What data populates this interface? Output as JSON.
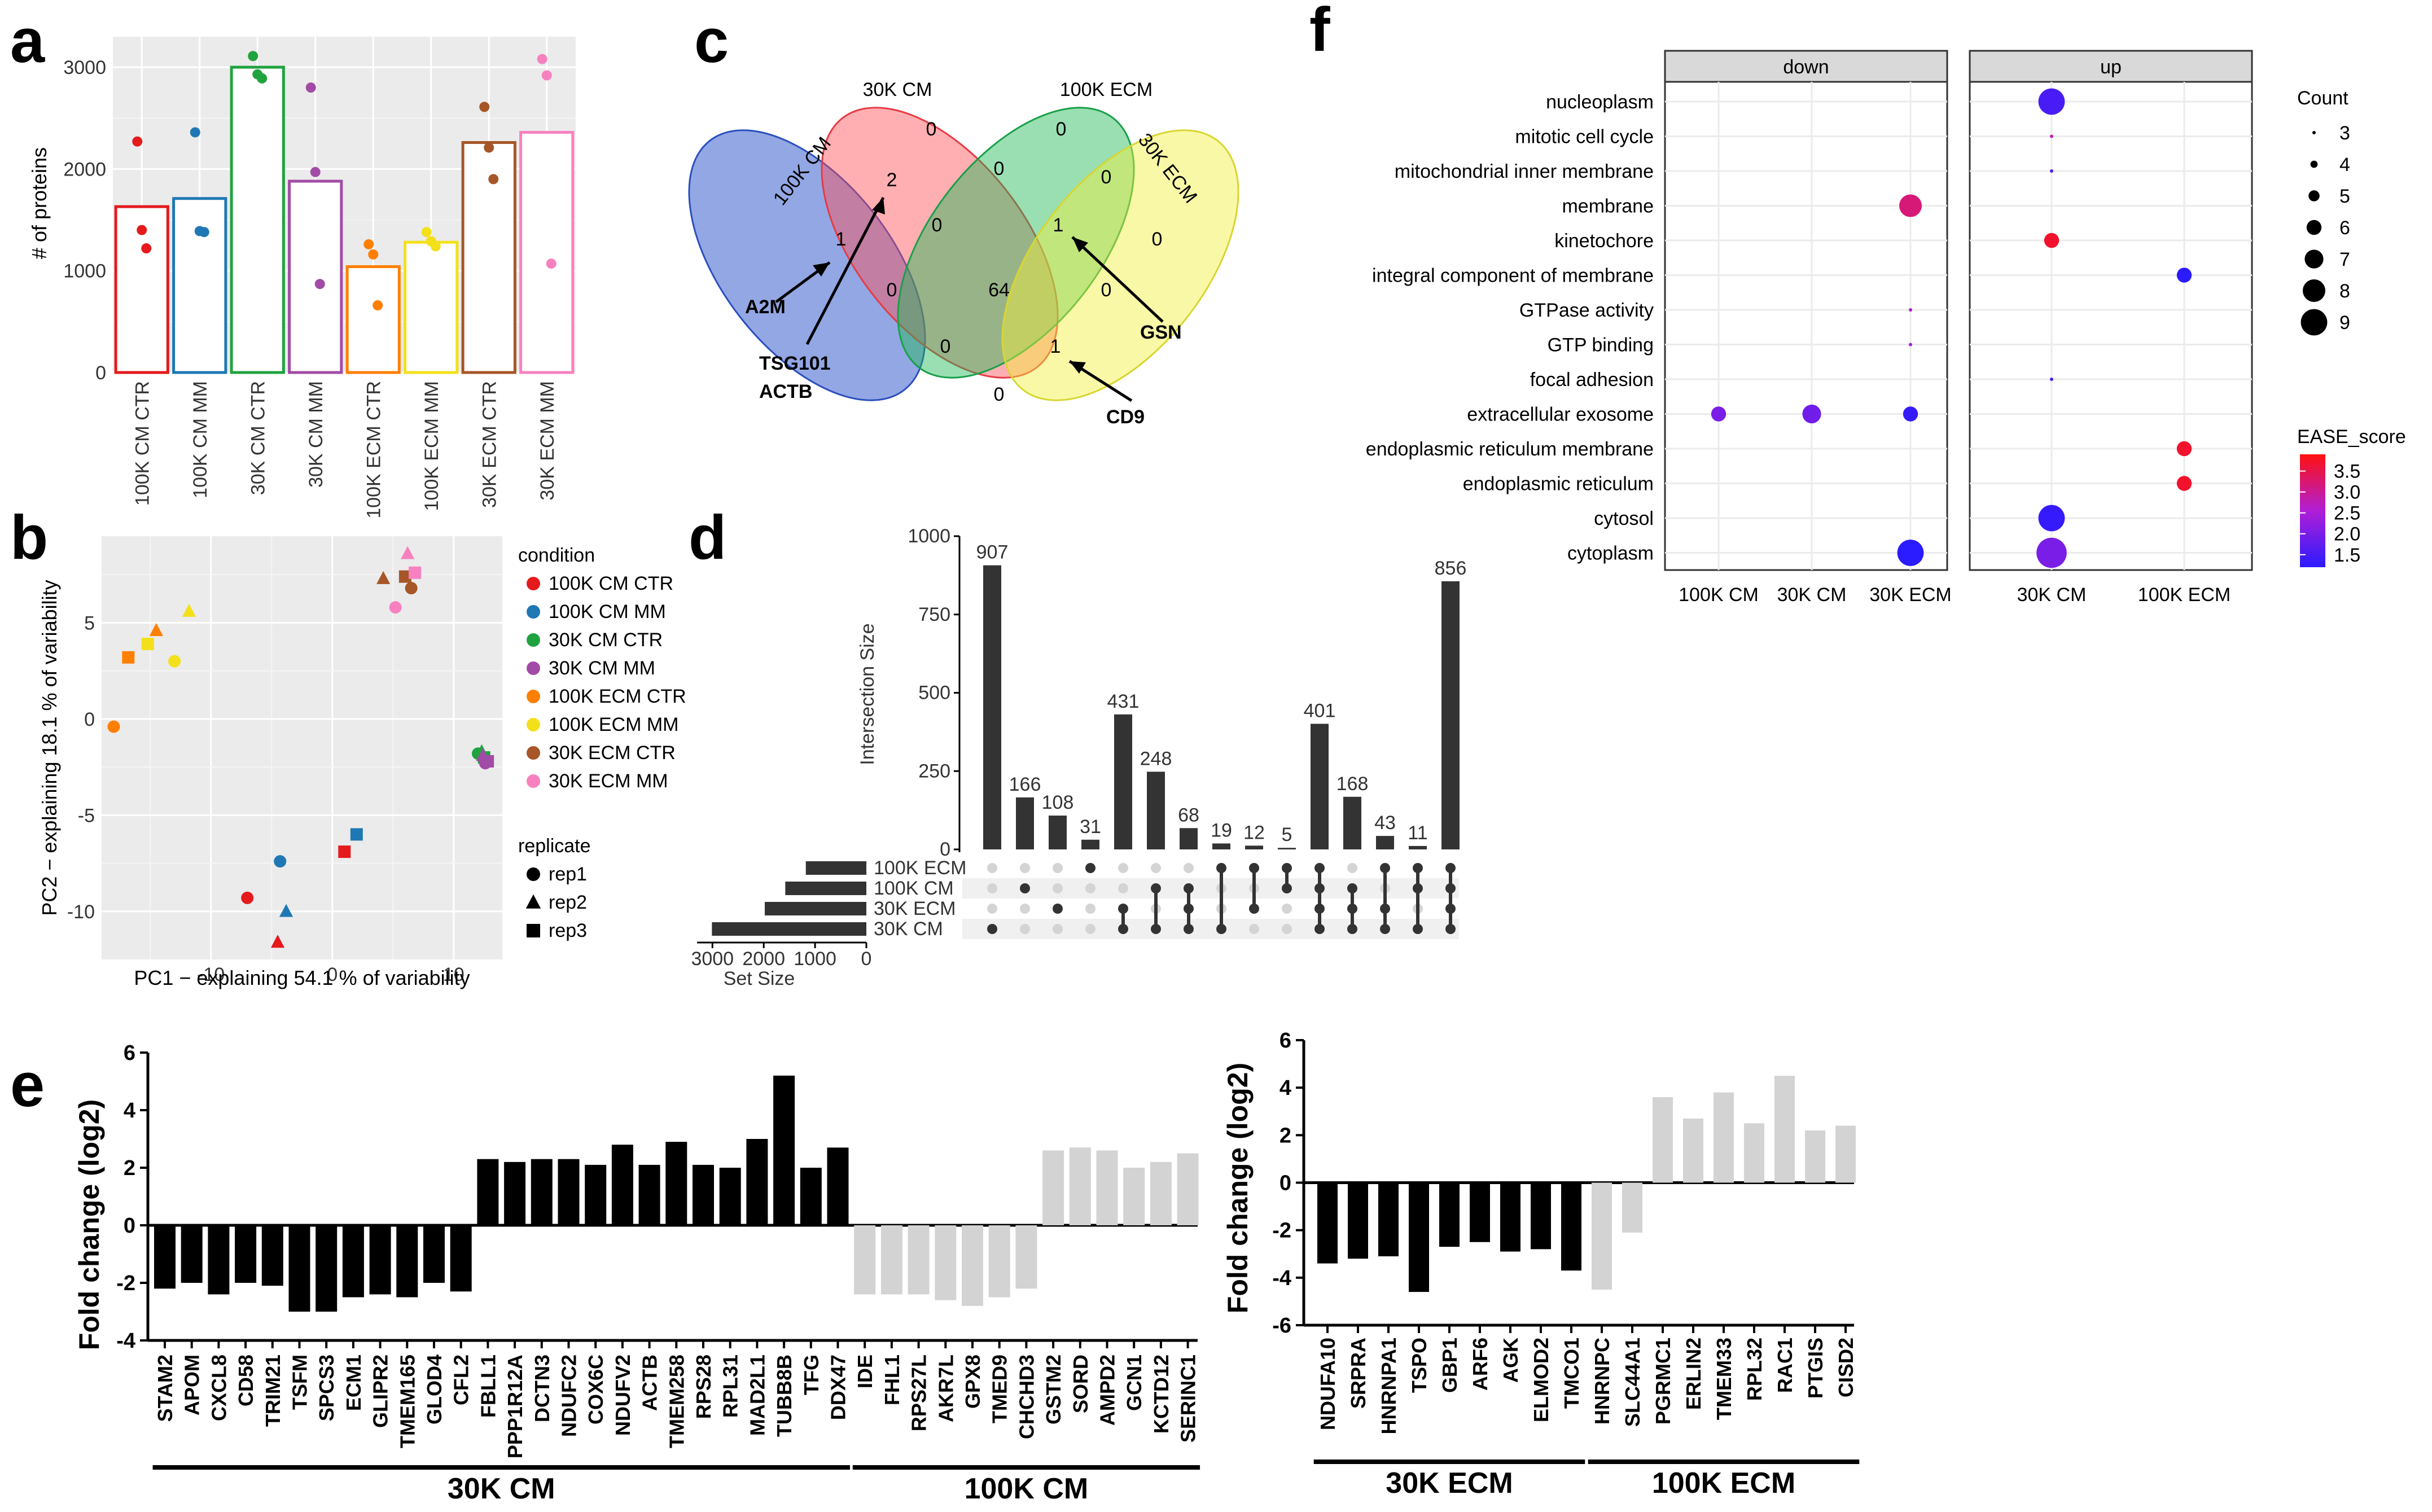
{
  "panels": {
    "a": "a",
    "b": "b",
    "c": "c",
    "d": "d",
    "e": "e",
    "f": "f"
  },
  "chart_data": [
    {
      "id": "a",
      "type": "bar",
      "ylabel": "# of proteins",
      "ylim": [
        0,
        3300
      ],
      "yticks": [
        0,
        1000,
        2000,
        3000
      ],
      "categories": [
        "100K CM CTR",
        "100K CM MM",
        "30K CM CTR",
        "30K CM MM",
        "100K ECM CTR",
        "100K ECM MM",
        "30K ECM CTR",
        "30K ECM MM"
      ],
      "values": [
        1630,
        1710,
        3000,
        1880,
        1040,
        1280,
        2260,
        2360
      ],
      "points": [
        [
          2270,
          1400,
          1220
        ],
        [
          2360,
          1390,
          1380
        ],
        [
          3110,
          2930,
          2890
        ],
        [
          2800,
          1970,
          870
        ],
        [
          1260,
          1160,
          660
        ],
        [
          1380,
          1290,
          1240
        ],
        [
          2610,
          2210,
          1900
        ],
        [
          3080,
          2920,
          1070
        ]
      ],
      "colors": [
        "#e41a1c",
        "#1f78b4",
        "#1fa33f",
        "#a24ba6",
        "#ff7f00",
        "#f3e01b",
        "#a65628",
        "#f781bf"
      ]
    },
    {
      "id": "b",
      "type": "scatter",
      "xlabel": "PC1 − explaining 54.1 % of variability",
      "ylabel": "PC2 − explaining 18.1 % of variability",
      "xlim": [
        -19,
        14
      ],
      "ylim": [
        -12.5,
        9.5
      ],
      "xticks": [
        -10,
        0,
        10
      ],
      "yticks": [
        -10,
        -5,
        0,
        5
      ],
      "legend_condition_title": "condition",
      "legend_condition": [
        "100K CM CTR",
        "100K CM MM",
        "30K CM CTR",
        "30K CM MM",
        "100K ECM CTR",
        "100K ECM MM",
        "30K ECM CTR",
        "30K ECM MM"
      ],
      "legend_replicate_title": "replicate",
      "legend_replicate": [
        "rep1",
        "rep2",
        "rep3"
      ],
      "points": [
        {
          "c": 0,
          "r": 0,
          "x": -7,
          "y": -9.3
        },
        {
          "c": 0,
          "r": 1,
          "x": -4.5,
          "y": -11.6
        },
        {
          "c": 0,
          "r": 2,
          "x": 1,
          "y": -6.9
        },
        {
          "c": 1,
          "r": 0,
          "x": -4.3,
          "y": -7.4
        },
        {
          "c": 1,
          "r": 1,
          "x": -3.8,
          "y": -10
        },
        {
          "c": 1,
          "r": 2,
          "x": 2,
          "y": -6
        },
        {
          "c": 2,
          "r": 0,
          "x": 12,
          "y": -1.8
        },
        {
          "c": 2,
          "r": 1,
          "x": 12.3,
          "y": -1.7
        },
        {
          "c": 2,
          "r": 2,
          "x": 12.5,
          "y": -2
        },
        {
          "c": 3,
          "r": 0,
          "x": 12.6,
          "y": -2.3
        },
        {
          "c": 3,
          "r": 1,
          "x": 12.4,
          "y": -1.9
        },
        {
          "c": 3,
          "r": 2,
          "x": 12.8,
          "y": -2.2
        },
        {
          "c": 4,
          "r": 0,
          "x": -18,
          "y": -0.4
        },
        {
          "c": 4,
          "r": 1,
          "x": -14.5,
          "y": 4.6
        },
        {
          "c": 4,
          "r": 2,
          "x": -16.8,
          "y": 3.2
        },
        {
          "c": 5,
          "r": 0,
          "x": -13,
          "y": 3
        },
        {
          "c": 5,
          "r": 1,
          "x": -11.8,
          "y": 5.6
        },
        {
          "c": 5,
          "r": 2,
          "x": -15.2,
          "y": 3.9
        },
        {
          "c": 6,
          "r": 0,
          "x": 6.5,
          "y": 6.8
        },
        {
          "c": 6,
          "r": 1,
          "x": 4.2,
          "y": 7.3
        },
        {
          "c": 6,
          "r": 2,
          "x": 6,
          "y": 7.4
        },
        {
          "c": 7,
          "r": 0,
          "x": 5.2,
          "y": 5.8
        },
        {
          "c": 7,
          "r": 1,
          "x": 6.2,
          "y": 8.6
        },
        {
          "c": 7,
          "r": 2,
          "x": 6.8,
          "y": 7.6
        }
      ]
    },
    {
      "id": "d",
      "type": "bar",
      "ylabel": "Intersection Size",
      "ylim": [
        0,
        1000
      ],
      "yticks": [
        0,
        250,
        500,
        750,
        1000
      ],
      "values": [
        907,
        166,
        108,
        31,
        431,
        248,
        68,
        19,
        12,
        5,
        401,
        168,
        43,
        11,
        856
      ],
      "sets": [
        "100K ECM",
        "100K CM",
        "30K ECM",
        "30K CM"
      ],
      "set_sizes": [
        1180,
        1580,
        1980,
        3010
      ],
      "set_size_label": "Set Size",
      "set_size_ticks": [
        3000,
        2000,
        1000,
        0
      ],
      "matrix": [
        [
          3
        ],
        [
          1
        ],
        [
          2
        ],
        [
          0
        ],
        [
          2,
          3
        ],
        [
          1,
          3
        ],
        [
          1,
          2,
          3
        ],
        [
          0,
          3
        ],
        [
          0,
          2
        ],
        [
          0,
          1
        ],
        [
          0,
          1,
          2,
          3
        ],
        [
          1,
          2,
          3
        ],
        [
          0,
          2,
          3
        ],
        [
          0,
          1,
          3
        ],
        [
          0,
          1,
          2,
          3
        ]
      ]
    },
    {
      "id": "e1",
      "type": "bar",
      "ylabel": "Fold change (log2)",
      "ylim": [
        -4,
        6
      ],
      "yticks": [
        -4,
        -2,
        0,
        2,
        4,
        6
      ],
      "categories": [
        "STAM2",
        "APOM",
        "CXCL8",
        "CD58",
        "TRIM21",
        "TSFM",
        "SPCS3",
        "ECM1",
        "GLIPR2",
        "TMEM165",
        "GLOD4",
        "CFL2",
        "FBLL1",
        "PPP1R12A",
        "DCTN3",
        "NDUFC2",
        "COX6C",
        "NDUFV2",
        "ACTB",
        "TMEM258",
        "RPS28",
        "RPL31",
        "MAD2L1",
        "TUBB8B",
        "TFG",
        "DDX47",
        "IDE",
        "FHL1",
        "RPS27L",
        "AKR7L",
        "GPX8",
        "TMED9",
        "CHCHD3",
        "GSTM2",
        "SORD",
        "AMPD2",
        "GCN1",
        "KCTD12",
        "SERINC1"
      ],
      "values": [
        -2.2,
        -2.0,
        -2.4,
        -2.0,
        -2.1,
        -3.0,
        -3.0,
        -2.5,
        -2.4,
        -2.5,
        -2.0,
        -2.3,
        2.3,
        2.2,
        2.3,
        2.3,
        2.1,
        2.8,
        2.1,
        2.9,
        2.1,
        2.0,
        3.0,
        5.2,
        2.0,
        2.7,
        -2.4,
        -2.4,
        -2.4,
        -2.6,
        -2.8,
        -2.5,
        -2.2,
        2.6,
        2.7,
        2.6,
        2.0,
        2.2,
        2.5
      ],
      "groups": [
        {
          "label": "30K CM",
          "start": 0,
          "end": 25,
          "color": "#000000"
        },
        {
          "label": "100K CM",
          "start": 26,
          "end": 38,
          "color": "#d3d3d3"
        }
      ]
    },
    {
      "id": "e2",
      "type": "bar",
      "ylabel": "Fold change (log2)",
      "ylim": [
        -6,
        6
      ],
      "yticks": [
        -6,
        -4,
        -2,
        0,
        2,
        4,
        6
      ],
      "categories": [
        "NDUFA10",
        "SRPRA",
        "HNRNPA1",
        "TSPO",
        "GBP1",
        "ARF6",
        "AGK",
        "ELMOD2",
        "TMCO1",
        "HNRNPC",
        "SLC44A1",
        "PGRMC1",
        "ERLIN2",
        "TMEM33",
        "RPL32",
        "RAC1",
        "PTGIS",
        "CISD2"
      ],
      "values": [
        -3.4,
        -3.2,
        -3.1,
        -4.6,
        -2.7,
        -2.5,
        -2.9,
        -2.8,
        -3.7,
        -4.5,
        -2.1,
        3.6,
        2.7,
        3.8,
        2.5,
        4.5,
        2.2,
        2.4
      ],
      "groups": [
        {
          "label": "30K ECM",
          "start": 0,
          "end": 8,
          "color": "#000000"
        },
        {
          "label": "100K ECM",
          "start": 9,
          "end": 17,
          "color": "#d3d3d3"
        }
      ]
    },
    {
      "id": "f",
      "type": "scatter",
      "facets": [
        "down",
        "up"
      ],
      "terms": [
        "nucleoplasm",
        "mitotic cell cycle",
        "mitochondrial inner membrane",
        "membrane",
        "kinetochore",
        "integral component of membrane",
        "GTPase activity",
        "GTP binding",
        "focal adhesion",
        "extracellular exosome",
        "endoplasmic reticulum membrane",
        "endoplasmic reticulum",
        "cytosol",
        "cytoplasm"
      ],
      "down_x": [
        "100K CM",
        "30K CM",
        "30K ECM"
      ],
      "up_x": [
        "30K CM",
        "100K ECM"
      ],
      "points": [
        {
          "f": 0,
          "x": 2,
          "t": 3,
          "count": 8,
          "ease": 3.2
        },
        {
          "f": 0,
          "x": 2,
          "t": 6,
          "count": 3,
          "ease": 2.6
        },
        {
          "f": 0,
          "x": 2,
          "t": 7,
          "count": 3,
          "ease": 2.4
        },
        {
          "f": 0,
          "x": 0,
          "t": 9,
          "count": 6,
          "ease": 2.0
        },
        {
          "f": 0,
          "x": 1,
          "t": 9,
          "count": 7,
          "ease": 1.9
        },
        {
          "f": 0,
          "x": 2,
          "t": 9,
          "count": 6,
          "ease": 1.3
        },
        {
          "f": 0,
          "x": 2,
          "t": 13,
          "count": 9,
          "ease": 1.2
        },
        {
          "f": 1,
          "x": 0,
          "t": 0,
          "count": 9,
          "ease": 1.5
        },
        {
          "f": 1,
          "x": 0,
          "t": 1,
          "count": 3,
          "ease": 2.8
        },
        {
          "f": 1,
          "x": 0,
          "t": 2,
          "count": 3,
          "ease": 1.6
        },
        {
          "f": 1,
          "x": 0,
          "t": 4,
          "count": 6,
          "ease": 3.7
        },
        {
          "f": 1,
          "x": 1,
          "t": 5,
          "count": 6,
          "ease": 1.2
        },
        {
          "f": 1,
          "x": 0,
          "t": 8,
          "count": 3,
          "ease": 1.5
        },
        {
          "f": 1,
          "x": 1,
          "t": 10,
          "count": 6,
          "ease": 3.7
        },
        {
          "f": 1,
          "x": 1,
          "t": 11,
          "count": 6,
          "ease": 3.7
        },
        {
          "f": 1,
          "x": 0,
          "t": 12,
          "count": 9,
          "ease": 1.3
        },
        {
          "f": 1,
          "x": 0,
          "t": 13,
          "count": 10,
          "ease": 2.0
        }
      ],
      "count_title": "Count",
      "count_legend": [
        3,
        4,
        5,
        6,
        7,
        8,
        9
      ],
      "ease_title": "EASE_score",
      "ease_ticks": [
        1.5,
        2.0,
        2.5,
        3.0,
        3.5
      ],
      "ease_range": [
        1.2,
        3.9
      ]
    }
  ],
  "venn": {
    "sets": [
      "30K CM",
      "100K ECM",
      "100K CM",
      "30K ECM"
    ],
    "regions": {
      "r1": "1",
      "r2": "2",
      "r3": "0",
      "r4": "0",
      "r5": "0",
      "r6": "0",
      "r7": "0",
      "r8": "64",
      "r9": "0",
      "r10": "1",
      "r11": "0",
      "r12": "0",
      "r13": "1",
      "r14": "0",
      "r15": "0"
    },
    "annotations": {
      "a2m": "A2M",
      "tsg": "TSG101",
      "actb": "ACTB",
      "gsn": "GSN",
      "cd9": "CD9"
    }
  }
}
